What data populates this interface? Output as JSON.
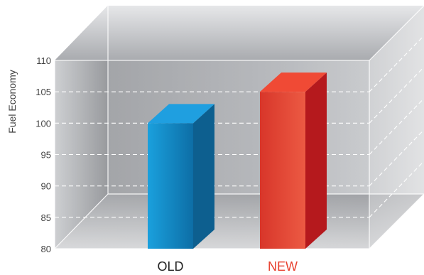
{
  "chart_data": {
    "type": "bar",
    "title": "",
    "xlabel": "",
    "ylabel": "Fuel Economy",
    "ylim": [
      80,
      110
    ],
    "yticks": [
      80,
      85,
      90,
      95,
      100,
      105,
      110
    ],
    "categories": [
      "OLD",
      "NEW"
    ],
    "values": [
      100,
      105
    ],
    "grid": true,
    "colors": {
      "OLD": {
        "top": "#1f9fe0",
        "front_light": "#1aa0dd",
        "front_dark": "#0d6ea6",
        "side": "#0d5f8f",
        "label": "#222222"
      },
      "NEW": {
        "top": "#f04a35",
        "front_light": "#d8362a",
        "front_dark": "#ec5a43",
        "side": "#b5191d",
        "label": "#e8412f"
      }
    }
  }
}
